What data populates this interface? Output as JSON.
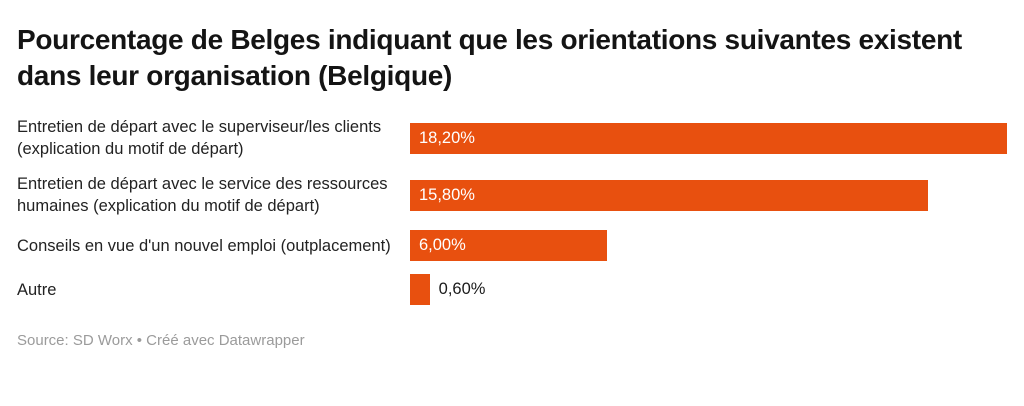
{
  "header": {
    "title": "Pourcentage de Belges indiquant que les orientations suivantes existent dans leur organisation (Belgique)"
  },
  "chart_data": {
    "type": "bar",
    "orientation": "horizontal",
    "title": "Pourcentage de Belges indiquant que les orientations suivantes existent dans leur organisation (Belgique)",
    "xlabel": "",
    "ylabel": "",
    "xlim": [
      0,
      18.2
    ],
    "grid": false,
    "legend": false,
    "bar_color": "#e8500f",
    "categories": [
      "Entretien de départ avec le superviseur/les clients (explication du motif de départ)",
      "Entretien de départ avec le service des ressources humaines (explication du motif de départ)",
      "Conseils en vue d'un nouvel emploi (outplacement)",
      "Autre"
    ],
    "values": [
      18.2,
      15.8,
      6.0,
      0.6
    ],
    "value_labels": [
      "18,20%",
      "15,80%",
      "6,00%",
      "0,60%"
    ],
    "value_label_positions": [
      "inside",
      "inside",
      "inside",
      "outside"
    ]
  },
  "footer": {
    "source_text": "Source: SD Worx • Créé avec Datawrapper"
  },
  "colors": {
    "bar": "#e8500f",
    "title": "#141414",
    "category_label": "#222222",
    "value_inside": "#ffffff",
    "value_outside": "#1a1a1a",
    "source": "#9b9b9b"
  }
}
